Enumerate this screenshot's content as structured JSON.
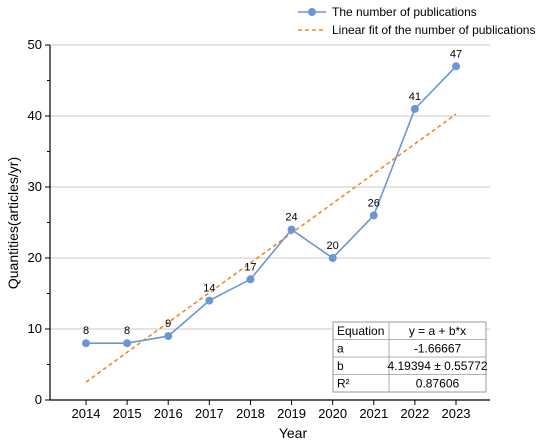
{
  "chart_data": {
    "type": "line",
    "xlabel": "Year",
    "ylabel": "Quantities(articles/yr)",
    "ylim": [
      0,
      50
    ],
    "x": [
      2014,
      2015,
      2016,
      2017,
      2018,
      2019,
      2020,
      2021,
      2022,
      2023
    ],
    "x_tick_labels": [
      "2014",
      "2015",
      "2016",
      "2017",
      "2018",
      "2019",
      "2020",
      "2021",
      "2022",
      "2023"
    ],
    "y_ticks": [
      0,
      10,
      20,
      30,
      40,
      50
    ],
    "y_tick_labels": [
      "0",
      "10",
      "20",
      "30",
      "40",
      "50"
    ],
    "grid": "horizontal",
    "legend_position": "top-right",
    "series": [
      {
        "name": "The number of publications",
        "values": [
          8,
          8,
          9,
          14,
          17,
          24,
          20,
          26,
          41,
          47
        ],
        "data_labels": [
          "8",
          "8",
          "9",
          "14",
          "17",
          "24",
          "20",
          "26",
          "41",
          "47"
        ],
        "color": "#6b96cf",
        "style": "line-with-markers"
      },
      {
        "name": "Linear fit of the number of publications",
        "values": [
          2.53,
          6.72,
          10.92,
          15.11,
          19.3,
          23.5,
          27.69,
          31.88,
          36.08,
          40.27
        ],
        "color": "#f08a24",
        "style": "dashed"
      }
    ],
    "fit_table": {
      "header": [
        "Equation",
        "y = a + b*x"
      ],
      "rows": [
        [
          "a",
          "-1.66667"
        ],
        [
          "b",
          "4.19394 ± 0.55772"
        ],
        [
          "R²",
          "0.87606"
        ]
      ]
    }
  }
}
